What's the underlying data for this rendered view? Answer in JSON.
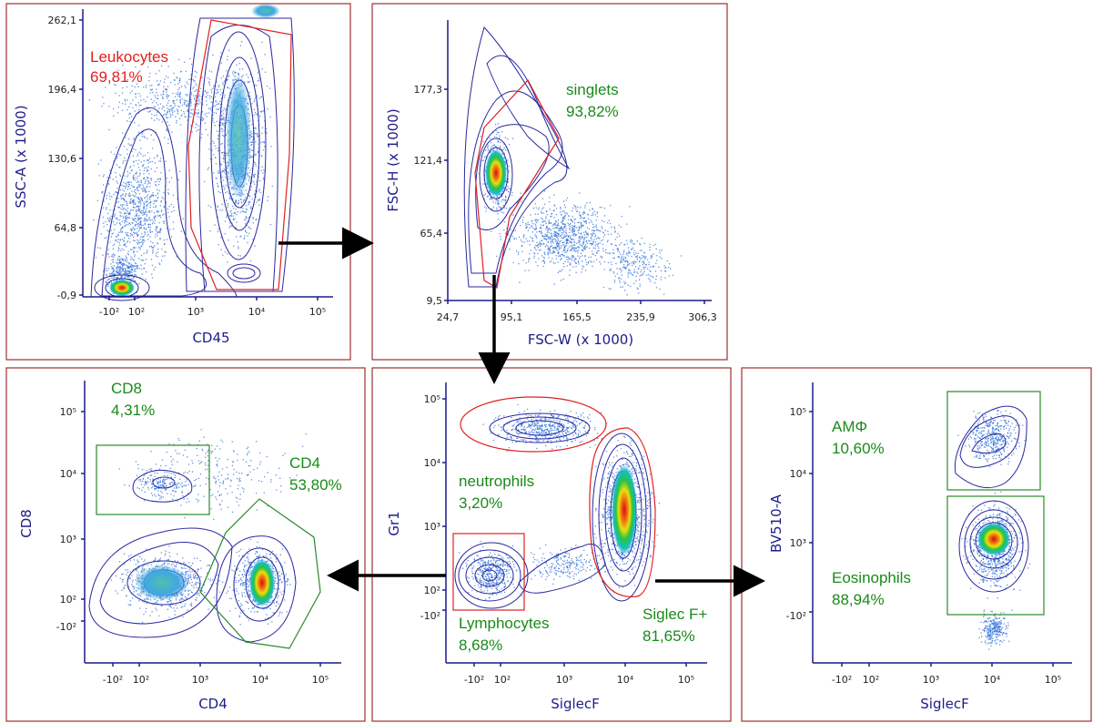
{
  "colors": {
    "panel_border": "#a03030",
    "axis": "#1c1c8a",
    "contour": "#2828a0",
    "red_label": "#e02020",
    "green_label": "#1a8a1a",
    "red_gate": "#e02020",
    "green_gate": "#2a8a2a",
    "arrow": "#000000"
  },
  "chart_data": [
    {
      "type": "scatter",
      "plot_style": "density contour plot",
      "xlabel": "CD45",
      "ylabel": "SSC-A (x 1000)",
      "x_scale": "log (biexponential)",
      "x_ticks": [
        "-10²",
        "10²",
        "10³",
        "10⁴",
        "10⁵"
      ],
      "y_ticks": [
        "262,1",
        "196,4",
        "130,6",
        "64,8",
        "-0,9"
      ],
      "gates": [
        {
          "name": "Leukocytes",
          "percent": "69,81%",
          "color": "red"
        }
      ]
    },
    {
      "type": "scatter",
      "plot_style": "density contour plot",
      "xlabel": "FSC-W (x 1000)",
      "ylabel": "FSC-H (x 1000)",
      "x_ticks": [
        "24,7",
        "95,1",
        "165,5",
        "235,9",
        "306,3"
      ],
      "y_ticks": [
        "177,3",
        "121,4",
        "65,4",
        "9,5"
      ],
      "gates": [
        {
          "name": "singlets",
          "percent": "93,82%",
          "color": "red"
        }
      ]
    },
    {
      "type": "scatter",
      "plot_style": "density contour plot",
      "xlabel": "CD4",
      "ylabel": "CD8",
      "x_ticks": [
        "-10²",
        "10²",
        "10³",
        "10⁴",
        "10⁵"
      ],
      "y_ticks": [
        "10⁵",
        "10⁴",
        "10³",
        "10²",
        "-10²"
      ],
      "gates": [
        {
          "name": "CD8",
          "percent": "4,31%",
          "color": "green"
        },
        {
          "name": "CD4",
          "percent": "53,80%",
          "color": "green"
        }
      ]
    },
    {
      "type": "scatter",
      "plot_style": "density contour plot",
      "xlabel": "SiglecF",
      "ylabel": "Gr1",
      "x_ticks": [
        "-10²",
        "10²",
        "10³",
        "10⁴",
        "10⁵"
      ],
      "y_ticks": [
        "10⁵",
        "10⁴",
        "10³",
        "10²",
        "-10²"
      ],
      "gates": [
        {
          "name": "neutrophils",
          "percent": "3,20%",
          "color": "red"
        },
        {
          "name": "Lymphocytes",
          "percent": "8,68%",
          "color": "red"
        },
        {
          "name": "Siglec F+",
          "percent": "81,65%",
          "color": "red"
        }
      ]
    },
    {
      "type": "scatter",
      "plot_style": "density contour plot",
      "xlabel": "SiglecF",
      "ylabel": "BV510-A",
      "x_ticks": [
        "-10²",
        "10²",
        "10³",
        "10⁴",
        "10⁵"
      ],
      "y_ticks": [
        "10⁵",
        "10⁴",
        "10³",
        "-10²"
      ],
      "gates": [
        {
          "name": "AMΦ",
          "percent": "10,60%",
          "color": "green"
        },
        {
          "name": "Eosinophils",
          "percent": "88,94%",
          "color": "green"
        }
      ]
    }
  ]
}
